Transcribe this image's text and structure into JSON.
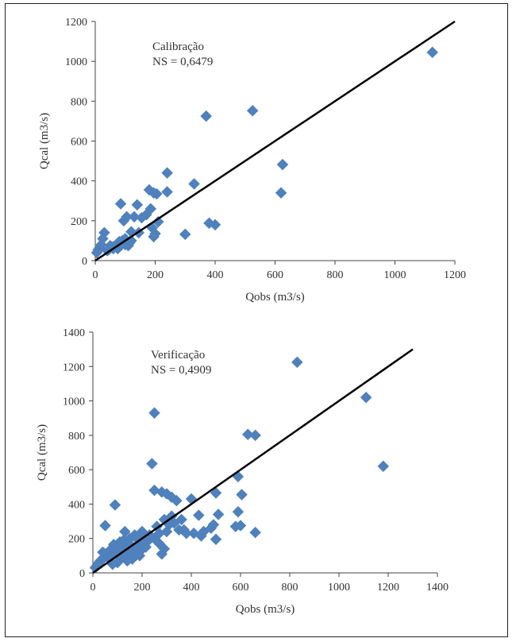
{
  "chart_data": [
    {
      "type": "scatter",
      "title": "",
      "xlabel": "Qobs (m3/s)",
      "ylabel": "Qcal (m3/s)",
      "xlim": [
        0,
        1200
      ],
      "ylim": [
        0,
        1200
      ],
      "xticks": [
        0,
        200,
        400,
        600,
        800,
        1000,
        1200
      ],
      "yticks": [
        0,
        200,
        400,
        600,
        800,
        1000,
        1200
      ],
      "xtick_labels": [
        "0",
        "200",
        "400",
        "600",
        "800",
        "1000",
        "1200"
      ],
      "ytick_labels": [
        "0",
        "200",
        "400",
        "600",
        "800",
        "1000",
        "1200"
      ],
      "annotation_lines": [
        "Calibração",
        "NS = 0,6479"
      ],
      "grid": false,
      "marker": "diamond",
      "marker_color": "#4f81bd",
      "line": {
        "x": [
          0,
          1200
        ],
        "y": [
          0,
          1200
        ],
        "color": "#000000"
      },
      "points": [
        [
          1125,
          1045
        ],
        [
          525,
          752
        ],
        [
          370,
          725
        ],
        [
          625,
          482
        ],
        [
          620,
          340
        ],
        [
          380,
          188
        ],
        [
          400,
          180
        ],
        [
          300,
          132
        ],
        [
          330,
          385
        ],
        [
          240,
          440
        ],
        [
          240,
          345
        ],
        [
          180,
          355
        ],
        [
          195,
          340
        ],
        [
          205,
          335
        ],
        [
          185,
          260
        ],
        [
          210,
          195
        ],
        [
          190,
          165
        ],
        [
          200,
          135
        ],
        [
          195,
          120
        ],
        [
          170,
          230
        ],
        [
          140,
          280
        ],
        [
          130,
          220
        ],
        [
          155,
          215
        ],
        [
          145,
          140
        ],
        [
          120,
          145
        ],
        [
          115,
          90
        ],
        [
          85,
          285
        ],
        [
          105,
          220
        ],
        [
          95,
          200
        ],
        [
          100,
          110
        ],
        [
          90,
          100
        ],
        [
          100,
          80
        ],
        [
          80,
          95
        ],
        [
          70,
          80
        ],
        [
          75,
          60
        ],
        [
          60,
          60
        ],
        [
          50,
          75
        ],
        [
          45,
          55
        ],
        [
          40,
          50
        ],
        [
          30,
          140
        ],
        [
          25,
          110
        ],
        [
          20,
          80
        ],
        [
          15,
          65
        ],
        [
          10,
          55
        ],
        [
          5,
          40
        ],
        [
          60,
          70
        ],
        [
          110,
          75
        ],
        [
          120,
          100
        ]
      ]
    },
    {
      "type": "scatter",
      "title": "",
      "xlabel": "Qobs (m3/s)",
      "ylabel": "Qcal (m3/s)",
      "xlim": [
        0,
        1400
      ],
      "ylim": [
        0,
        1400
      ],
      "xticks": [
        0,
        200,
        400,
        600,
        800,
        1000,
        1200,
        1400
      ],
      "yticks": [
        0,
        200,
        400,
        600,
        800,
        1000,
        1200,
        1400
      ],
      "xtick_labels": [
        "0",
        "200",
        "400",
        "600",
        "800",
        "1000",
        "1200",
        "1400"
      ],
      "ytick_labels": [
        "0",
        "200",
        "400",
        "600",
        "800",
        "1000",
        "1200",
        "1400"
      ],
      "annotation_lines": [
        "Verificação",
        "NS = 0,4909"
      ],
      "grid": false,
      "marker": "diamond",
      "marker_color": "#4f81bd",
      "line": {
        "x": [
          0,
          1300
        ],
        "y": [
          0,
          1300
        ],
        "color": "#000000"
      },
      "points": [
        [
          830,
          1225
        ],
        [
          1110,
          1020
        ],
        [
          250,
          930
        ],
        [
          630,
          805
        ],
        [
          660,
          800
        ],
        [
          240,
          635
        ],
        [
          1180,
          620
        ],
        [
          590,
          560
        ],
        [
          250,
          480
        ],
        [
          280,
          470
        ],
        [
          300,
          460
        ],
        [
          320,
          440
        ],
        [
          500,
          465
        ],
        [
          605,
          455
        ],
        [
          400,
          430
        ],
        [
          340,
          420
        ],
        [
          90,
          395
        ],
        [
          590,
          355
        ],
        [
          510,
          340
        ],
        [
          430,
          335
        ],
        [
          320,
          330
        ],
        [
          290,
          310
        ],
        [
          360,
          310
        ],
        [
          490,
          280
        ],
        [
          580,
          270
        ],
        [
          600,
          275
        ],
        [
          50,
          275
        ],
        [
          660,
          235
        ],
        [
          440,
          215
        ],
        [
          500,
          195
        ],
        [
          350,
          250
        ],
        [
          380,
          230
        ],
        [
          300,
          240
        ],
        [
          270,
          230
        ],
        [
          250,
          200
        ],
        [
          270,
          170
        ],
        [
          290,
          140
        ],
        [
          280,
          110
        ],
        [
          220,
          180
        ],
        [
          200,
          160
        ],
        [
          180,
          150
        ],
        [
          160,
          140
        ],
        [
          140,
          130
        ],
        [
          120,
          120
        ],
        [
          100,
          110
        ],
        [
          80,
          100
        ],
        [
          60,
          90
        ],
        [
          40,
          80
        ],
        [
          30,
          70
        ],
        [
          25,
          60
        ],
        [
          20,
          50
        ],
        [
          15,
          40
        ],
        [
          10,
          30
        ],
        [
          130,
          240
        ],
        [
          200,
          240
        ],
        [
          170,
          220
        ],
        [
          150,
          200
        ],
        [
          110,
          180
        ],
        [
          90,
          150
        ],
        [
          70,
          120
        ],
        [
          50,
          110
        ],
        [
          190,
          100
        ],
        [
          160,
          80
        ],
        [
          140,
          70
        ],
        [
          100,
          60
        ],
        [
          80,
          50
        ],
        [
          120,
          150
        ],
        [
          60,
          100
        ],
        [
          40,
          120
        ],
        [
          75,
          140
        ],
        [
          210,
          210
        ],
        [
          230,
          220
        ],
        [
          260,
          270
        ],
        [
          310,
          280
        ],
        [
          330,
          290
        ],
        [
          370,
          250
        ],
        [
          450,
          240
        ],
        [
          410,
          230
        ],
        [
          480,
          260
        ],
        [
          185,
          190
        ],
        [
          145,
          175
        ],
        [
          125,
          190
        ],
        [
          95,
          130
        ],
        [
          85,
          165
        ],
        [
          115,
          100
        ],
        [
          135,
          95
        ],
        [
          155,
          110
        ],
        [
          175,
          120
        ],
        [
          195,
          130
        ],
        [
          215,
          150
        ]
      ]
    }
  ]
}
